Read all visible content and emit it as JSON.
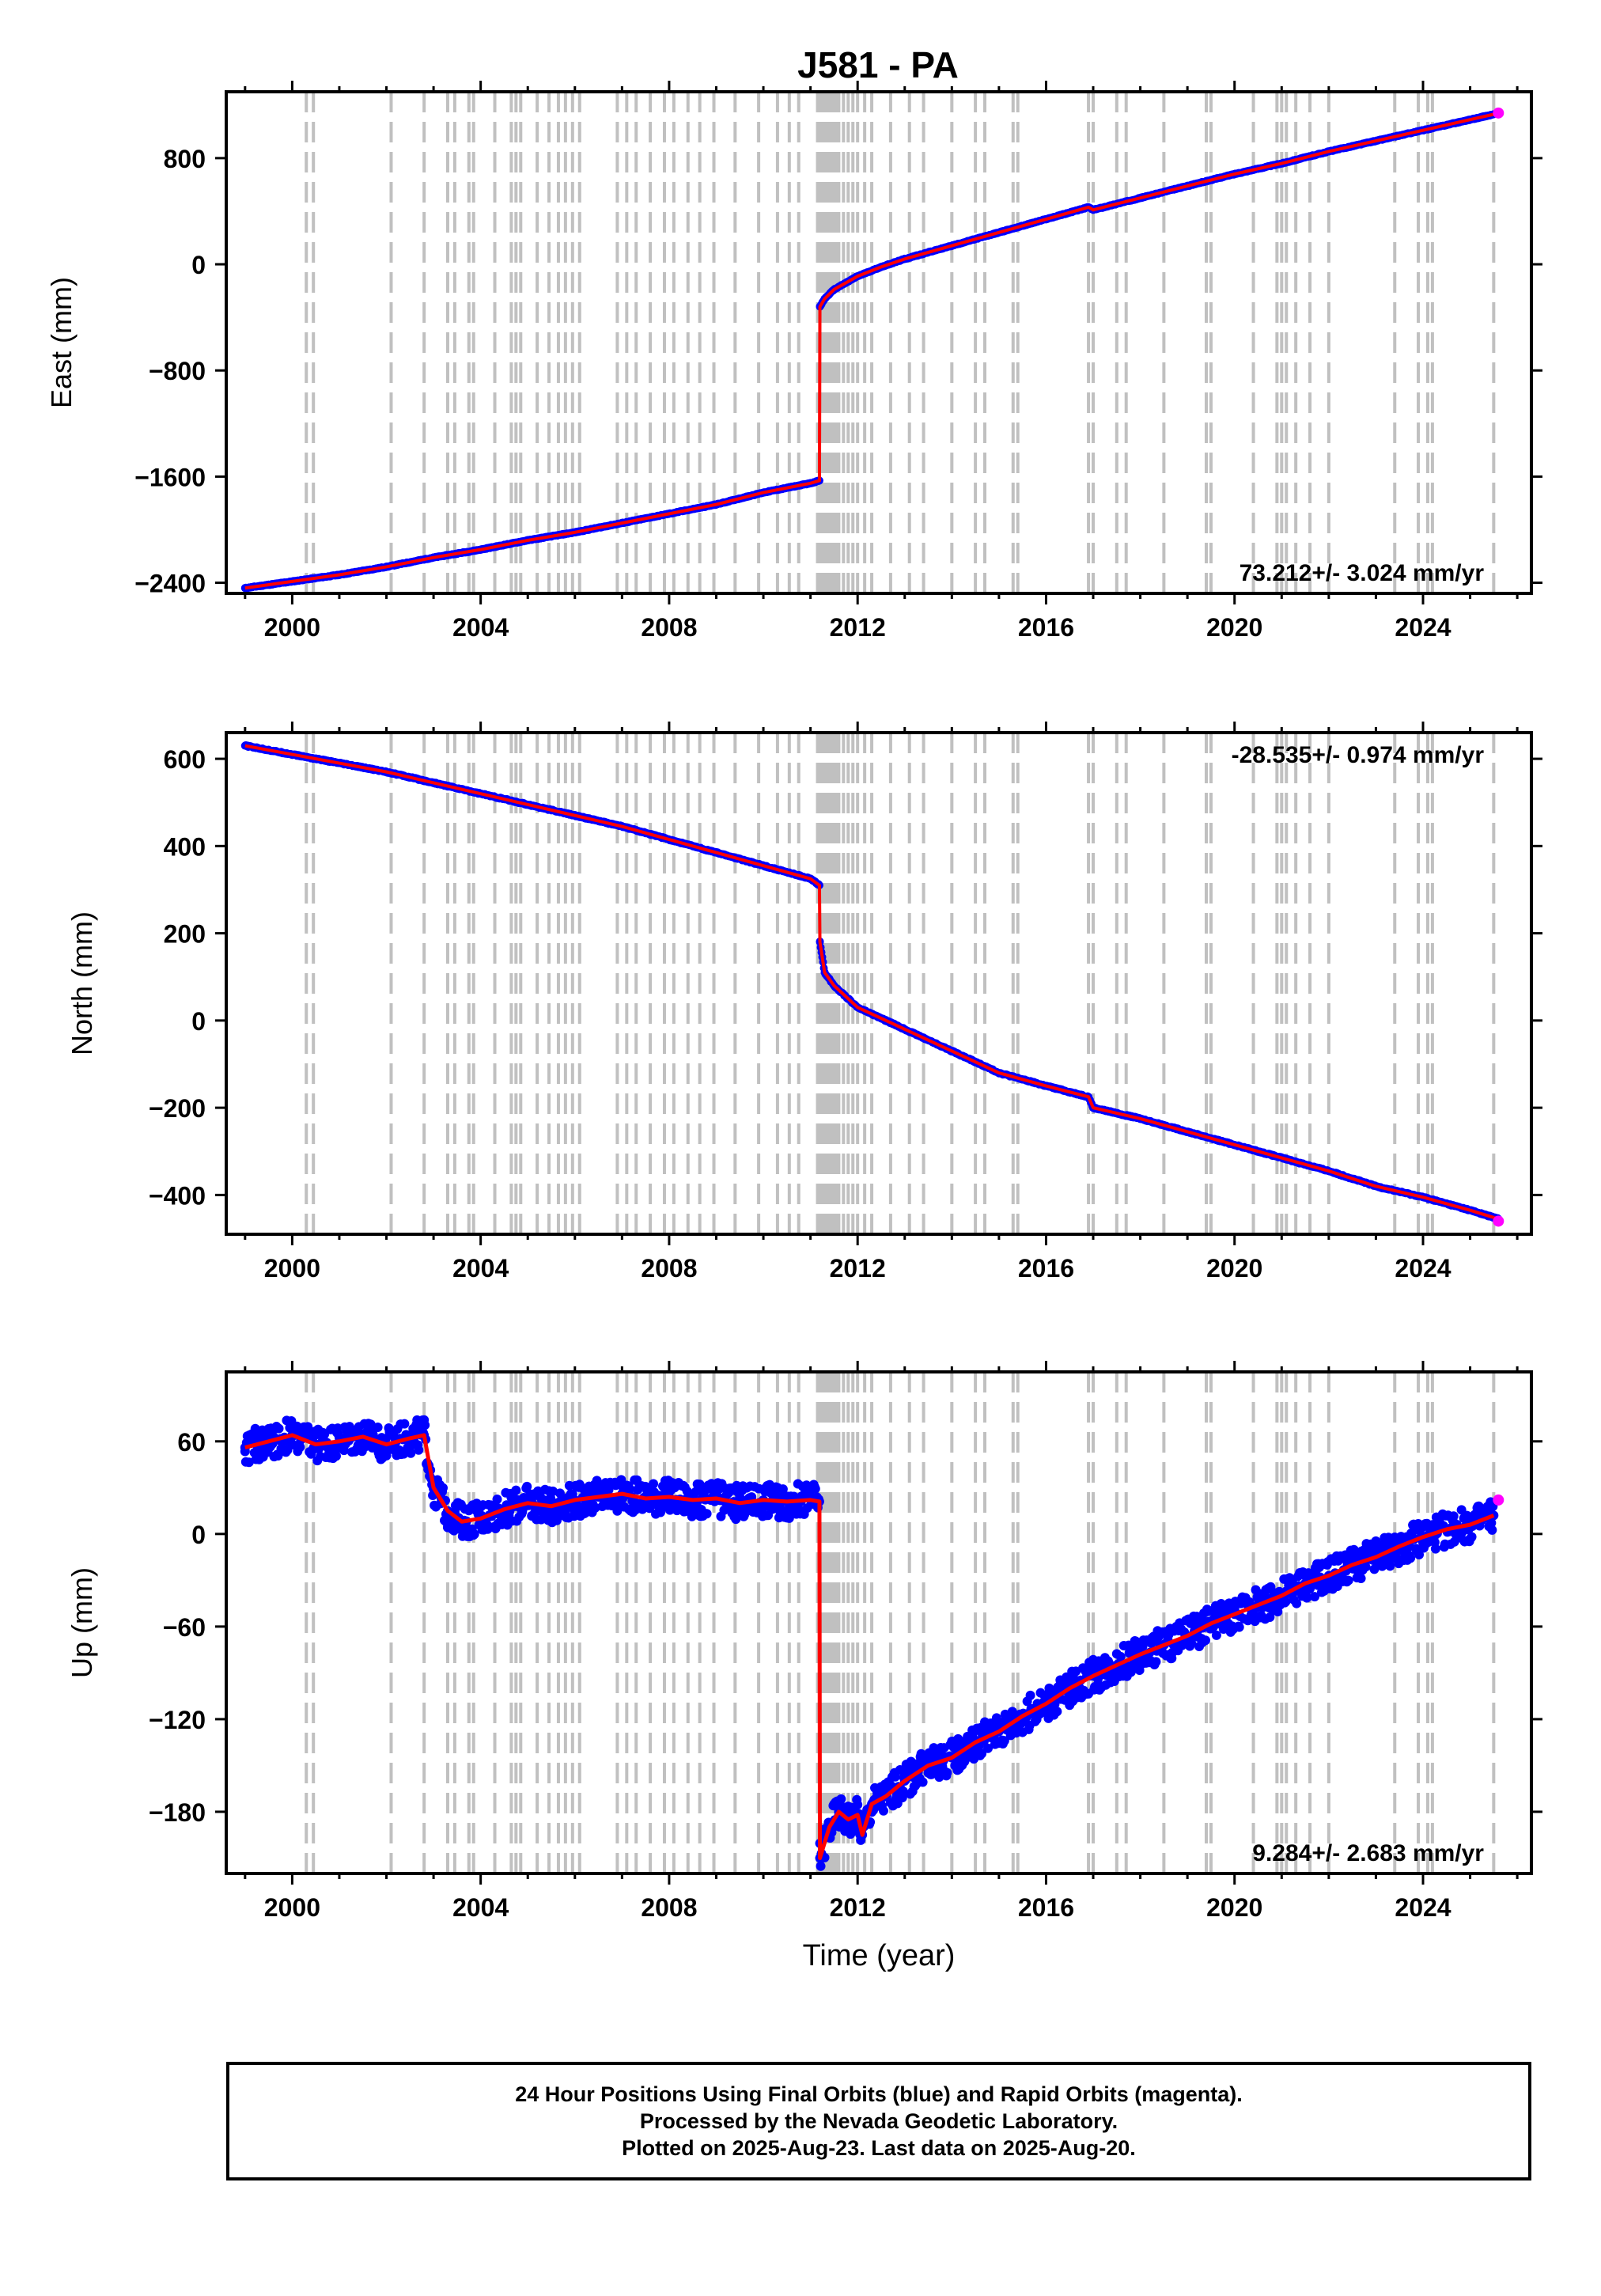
{
  "title": "J581 - PA",
  "footer": {
    "line1": "24 Hour Positions Using Final Orbits (blue) and Rapid Orbits (magenta).",
    "line2": "Processed by the Nevada Geodetic Laboratory.",
    "line3": "Plotted on 2025-Aug-23. Last data on 2025-Aug-20."
  },
  "colors": {
    "final_orbits": "#0000ff",
    "rapid_orbits": "#ff00ff",
    "model_fit": "#ff0000",
    "event_lines": "#c0c0c0",
    "frame": "#000000"
  },
  "chart_data": [
    {
      "type": "scatter",
      "panel": "east",
      "ylabel": "East (mm)",
      "xlim": [
        1998.6,
        2026.3
      ],
      "ylim": [
        -2480,
        1300
      ],
      "xticks": [
        2000,
        2004,
        2008,
        2012,
        2016,
        2020,
        2024
      ],
      "yticks": [
        800,
        0,
        -800,
        -1600,
        -2400
      ],
      "xticklabels": [
        "2000",
        "2004",
        "2008",
        "2012",
        "2016",
        "2020",
        "2024"
      ],
      "yticklabels": [
        "800",
        "0",
        "−800",
        "−1600",
        "−2400"
      ],
      "rate_annotation": "73.212+/- 3.024 mm/yr",
      "series": [
        {
          "name": "Final Orbits",
          "color": "#0000ff",
          "x": [
            1999.0,
            2000.0,
            2001.0,
            2002.0,
            2003.0,
            2004.0,
            2005.0,
            2006.0,
            2007.0,
            2008.0,
            2009.0,
            2010.0,
            2011.0,
            2011.19,
            2011.2,
            2011.3,
            2011.5,
            2011.8,
            2012.0,
            2012.5,
            2013.0,
            2014.0,
            2015.0,
            2016.0,
            2016.9,
            2017.0,
            2018.0,
            2019.0,
            2020.0,
            2021.0,
            2022.0,
            2023.0,
            2024.0,
            2025.0,
            2025.5
          ],
          "y": [
            -2440,
            -2390,
            -2340,
            -2280,
            -2210,
            -2150,
            -2080,
            -2020,
            -1950,
            -1880,
            -1810,
            -1720,
            -1650,
            -1630,
            -320,
            -260,
            -190,
            -130,
            -90,
            -20,
            40,
            140,
            240,
            340,
            430,
            410,
            500,
            590,
            680,
            760,
            850,
            930,
            1010,
            1090,
            1130
          ]
        },
        {
          "name": "Rapid Orbits",
          "color": "#ff00ff",
          "x": [
            2025.6
          ],
          "y": [
            1140
          ]
        }
      ]
    },
    {
      "type": "scatter",
      "panel": "north",
      "ylabel": "North (mm)",
      "xlim": [
        1998.6,
        2026.3
      ],
      "ylim": [
        -490,
        660
      ],
      "xticks": [
        2000,
        2004,
        2008,
        2012,
        2016,
        2020,
        2024
      ],
      "yticks": [
        600,
        400,
        200,
        0,
        -200,
        -400
      ],
      "xticklabels": [
        "2000",
        "2004",
        "2008",
        "2012",
        "2016",
        "2020",
        "2024"
      ],
      "yticklabels": [
        "600",
        "400",
        "200",
        "0",
        "−200",
        "−400"
      ],
      "rate_annotation": "-28.535+/- 0.974 mm/yr",
      "series": [
        {
          "name": "Final Orbits",
          "color": "#0000ff",
          "x": [
            1999.0,
            2000.0,
            2001.0,
            2002.0,
            2003.0,
            2004.0,
            2005.0,
            2006.0,
            2007.0,
            2008.0,
            2009.0,
            2010.0,
            2011.0,
            2011.19,
            2011.2,
            2011.3,
            2011.5,
            2012.0,
            2012.5,
            2013.0,
            2014.0,
            2015.0,
            2016.0,
            2016.9,
            2017.0,
            2018.0,
            2019.0,
            2020.0,
            2021.0,
            2022.0,
            2023.0,
            2024.0,
            2025.0,
            2025.6
          ],
          "y": [
            630,
            610,
            590,
            570,
            545,
            520,
            495,
            470,
            445,
            415,
            385,
            355,
            325,
            310,
            180,
            110,
            80,
            30,
            5,
            -20,
            -70,
            -120,
            -150,
            -175,
            -200,
            -225,
            -255,
            -285,
            -315,
            -345,
            -380,
            -405,
            -435,
            -455
          ]
        },
        {
          "name": "Rapid Orbits",
          "color": "#ff00ff",
          "x": [
            2025.6
          ],
          "y": [
            -460
          ]
        }
      ]
    },
    {
      "type": "scatter",
      "panel": "up",
      "ylabel": "Up (mm)",
      "xlabel": "Time (year)",
      "xlim": [
        1998.6,
        2026.3
      ],
      "ylim": [
        -220,
        105
      ],
      "xticks": [
        2000,
        2004,
        2008,
        2012,
        2016,
        2020,
        2024
      ],
      "yticks": [
        60,
        0,
        -60,
        -120,
        -180
      ],
      "xticklabels": [
        "2000",
        "2004",
        "2008",
        "2012",
        "2016",
        "2020",
        "2024"
      ],
      "yticklabels": [
        "60",
        "0",
        "−60",
        "−120",
        "−180"
      ],
      "rate_annotation": "9.284+/- 2.683 mm/yr",
      "series": [
        {
          "name": "Final Orbits",
          "color": "#0000ff",
          "x": [
            1999.0,
            1999.5,
            2000.0,
            2000.5,
            2001.0,
            2001.5,
            2002.0,
            2002.5,
            2002.8,
            2003.0,
            2003.3,
            2003.6,
            2004.0,
            2004.5,
            2005.0,
            2005.5,
            2006.0,
            2006.5,
            2007.0,
            2007.5,
            2008.0,
            2008.5,
            2009.0,
            2009.5,
            2010.0,
            2010.5,
            2011.0,
            2011.19,
            2011.2,
            2011.4,
            2011.6,
            2011.8,
            2012.0,
            2012.1,
            2012.3,
            2012.6,
            2013.0,
            2013.5,
            2014.0,
            2014.5,
            2015.0,
            2015.5,
            2016.0,
            2016.5,
            2017.0,
            2017.5,
            2018.0,
            2018.5,
            2019.0,
            2019.5,
            2020.0,
            2020.5,
            2021.0,
            2021.5,
            2022.0,
            2022.5,
            2023.0,
            2023.5,
            2024.0,
            2024.5,
            2025.0,
            2025.5
          ],
          "y": [
            56,
            60,
            64,
            58,
            60,
            63,
            58,
            62,
            64,
            30,
            15,
            8,
            10,
            16,
            20,
            18,
            22,
            24,
            26,
            23,
            24,
            22,
            23,
            20,
            22,
            21,
            22,
            21,
            -210,
            -190,
            -180,
            -185,
            -182,
            -195,
            -175,
            -170,
            -160,
            -150,
            -145,
            -135,
            -128,
            -118,
            -110,
            -100,
            -92,
            -85,
            -78,
            -72,
            -66,
            -58,
            -52,
            -46,
            -40,
            -32,
            -27,
            -20,
            -15,
            -8,
            -2,
            3,
            6,
            12
          ]
        },
        {
          "name": "Rapid Orbits",
          "color": "#ff00ff",
          "x": [
            2025.6
          ],
          "y": [
            22
          ]
        }
      ]
    }
  ],
  "event_lines": [
    2000.3,
    2000.45,
    2002.1,
    2002.8,
    2003.3,
    2003.45,
    2003.75,
    2003.85,
    2004.3,
    2004.65,
    2004.75,
    2004.85,
    2005.2,
    2005.45,
    2005.65,
    2005.8,
    2005.95,
    2006.1,
    2006.9,
    2007.1,
    2007.3,
    2007.6,
    2007.9,
    2008.1,
    2008.4,
    2008.65,
    2008.95,
    2009.4,
    2009.9,
    2010.3,
    2010.55,
    2010.75,
    2011.15,
    2011.2,
    2011.25,
    2011.3,
    2011.35,
    2011.4,
    2011.45,
    2011.5,
    2011.55,
    2011.6,
    2011.7,
    2011.8,
    2011.9,
    2012.0,
    2012.15,
    2012.3,
    2012.7,
    2013.1,
    2013.4,
    2014.0,
    2014.5,
    2014.7,
    2015.3,
    2015.4,
    2016.9,
    2017.0,
    2017.5,
    2017.7,
    2018.5,
    2019.4,
    2019.5,
    2020.4,
    2020.9,
    2021.0,
    2021.1,
    2021.3,
    2021.6,
    2022.0,
    2023.4,
    2023.9,
    2024.1,
    2024.2,
    2025.5
  ]
}
